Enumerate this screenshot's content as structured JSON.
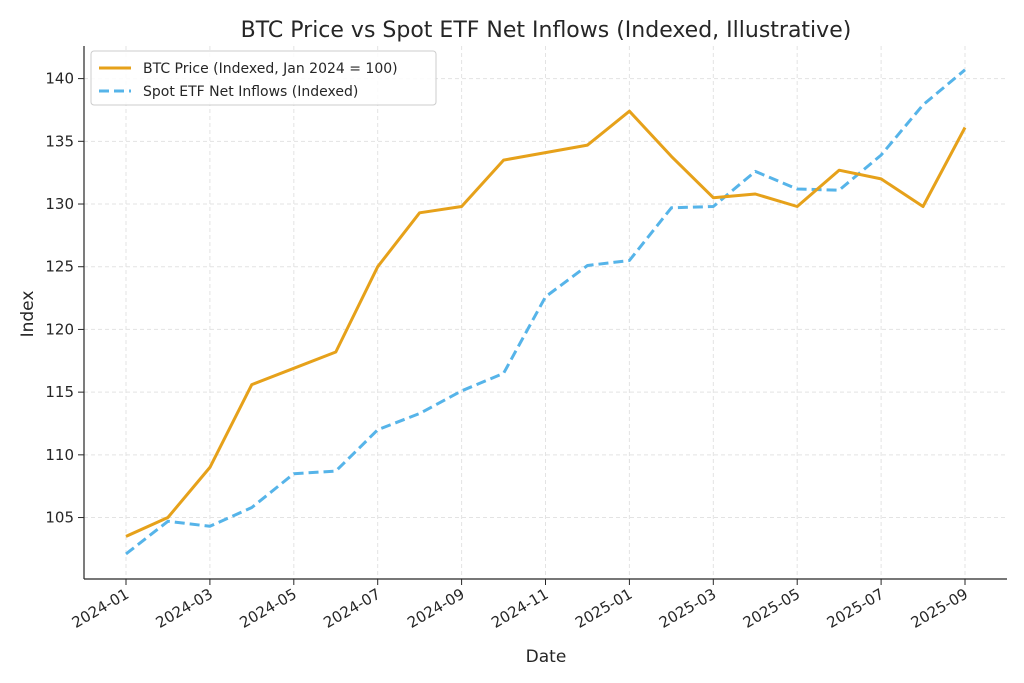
{
  "chart_data": {
    "type": "line",
    "title": "BTC Price vs Spot ETF Net Inflows (Indexed, Illustrative)",
    "xlabel": "Date",
    "ylabel": "Index",
    "x": [
      "2024-01",
      "2024-02",
      "2024-03",
      "2024-04",
      "2024-05",
      "2024-06",
      "2024-07",
      "2024-08",
      "2024-09",
      "2024-10",
      "2024-11",
      "2024-12",
      "2025-01",
      "2025-02",
      "2025-03",
      "2025-04",
      "2025-05",
      "2025-06",
      "2025-07",
      "2025-08",
      "2025-09"
    ],
    "x_tick_labels": [
      "2024-01",
      "2024-03",
      "2024-05",
      "2024-07",
      "2024-09",
      "2024-11",
      "2025-01",
      "2025-03",
      "2025-05",
      "2025-07",
      "2025-09"
    ],
    "y_ticks": [
      105,
      110,
      115,
      120,
      125,
      130,
      135,
      140
    ],
    "ylim": [
      100.1,
      142.6
    ],
    "grid": true,
    "legend_position": "top-left",
    "series": [
      {
        "name": "BTC Price (Indexed, Jan 2024 = 100)",
        "color": "#E6A11A",
        "style": "solid",
        "values": [
          103.5,
          105.0,
          109.0,
          115.6,
          116.9,
          118.2,
          125.0,
          129.3,
          129.8,
          133.5,
          134.1,
          134.7,
          137.4,
          133.8,
          130.5,
          130.8,
          129.8,
          132.7,
          132.0,
          129.8,
          136.1
        ]
      },
      {
        "name": "Spot ETF Net Inflows (Indexed)",
        "color": "#56B4E9",
        "style": "dashed",
        "values": [
          102.1,
          104.7,
          104.3,
          105.8,
          108.5,
          108.7,
          112.0,
          113.3,
          115.1,
          116.5,
          122.6,
          125.1,
          125.5,
          129.7,
          129.8,
          132.6,
          131.2,
          131.1,
          133.9,
          137.9,
          140.7
        ]
      }
    ]
  }
}
